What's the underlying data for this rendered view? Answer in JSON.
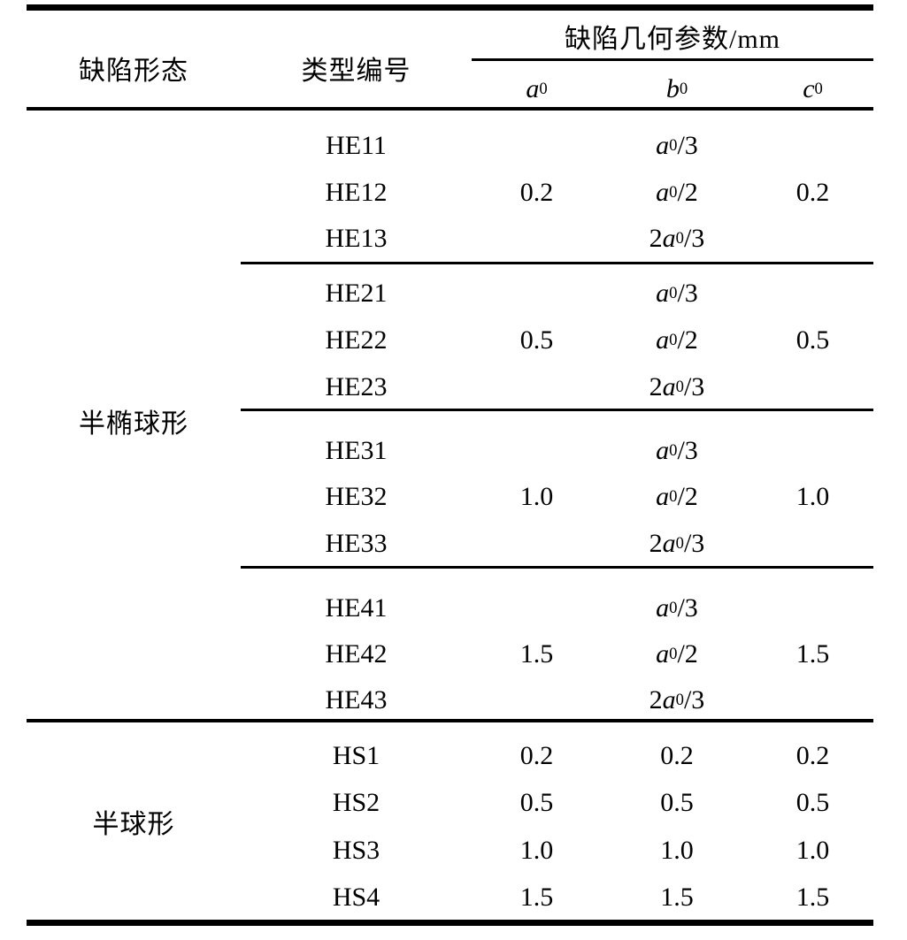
{
  "table": {
    "header": {
      "shape": "缺陷形态",
      "type": "类型编号",
      "params_group": "缺陷几何参数/mm",
      "a": "a0",
      "b": "b0",
      "c": "c0"
    },
    "groups": [
      {
        "shape": "半椭球形",
        "rows": [
          {
            "type": "HE11",
            "a": "",
            "b": "a0/3",
            "c": ""
          },
          {
            "type": "HE12",
            "a": "0.2",
            "b": "a0/2",
            "c": "0.2"
          },
          {
            "type": "HE13",
            "a": "",
            "b": "2a0/3",
            "c": ""
          },
          {
            "type": "HE21",
            "a": "",
            "b": "a0/3",
            "c": ""
          },
          {
            "type": "HE22",
            "a": "0.5",
            "b": "a0/2",
            "c": "0.5"
          },
          {
            "type": "HE23",
            "a": "",
            "b": "2a0/3",
            "c": ""
          },
          {
            "type": "HE31",
            "a": "",
            "b": "a0/3",
            "c": ""
          },
          {
            "type": "HE32",
            "a": "1.0",
            "b": "a0/2",
            "c": "1.0"
          },
          {
            "type": "HE33",
            "a": "",
            "b": "2a0/3",
            "c": ""
          },
          {
            "type": "HE41",
            "a": "",
            "b": "a0/3",
            "c": ""
          },
          {
            "type": "HE42",
            "a": "1.5",
            "b": "a0 /2",
            "c": "1.5"
          },
          {
            "type": "HE43",
            "a": "",
            "b": "2a0/3",
            "c": ""
          }
        ]
      },
      {
        "shape": "半球形",
        "rows": [
          {
            "type": "HS1",
            "a": "0.2",
            "b": "0.2",
            "c": "0.2"
          },
          {
            "type": "HS2",
            "a": "0.5",
            "b": "0.5",
            "c": "0.5"
          },
          {
            "type": "HS3",
            "a": "1.0",
            "b": "1.0",
            "c": "1.0"
          },
          {
            "type": "HS4",
            "a": "1.5",
            "b": "1.5",
            "c": "1.5"
          }
        ]
      }
    ],
    "colors": {
      "rule": "#000000",
      "text": "#000000",
      "background": "#ffffff"
    }
  }
}
